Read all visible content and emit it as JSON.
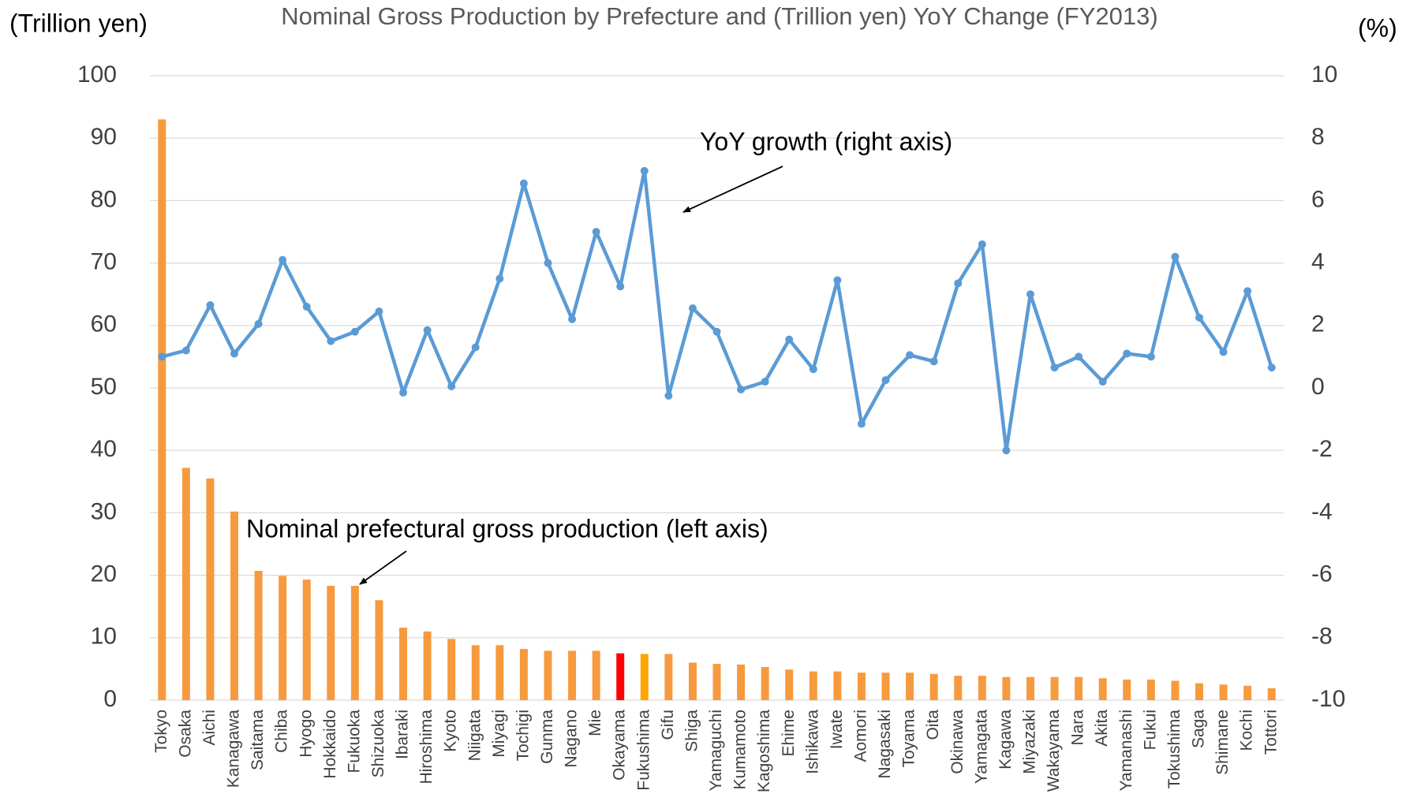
{
  "chart_data": {
    "type": "bar_line",
    "title": "Nominal Gross Production by Prefecture and (Trillion  yen) YoY Change (FY2013)",
    "y_label": "(Trillion yen)",
    "y2_label": "(%)",
    "categories": [
      "Tokyo",
      "Osaka",
      "Aichi",
      "Kanagawa",
      "Saitama",
      "Chiba",
      "Hyogo",
      "Hokkaido",
      "Fukuoka",
      "Shizuoka",
      "Ibaraki",
      "Hiroshima",
      "Kyoto",
      "Niigata",
      "Miyagi",
      "Tochigi",
      "Gunma",
      "Nagano",
      "Mie",
      "Okayama",
      "Fukushima",
      "Gifu",
      "Shiga",
      "Yamaguchi",
      "Kumamoto",
      "Kagoshima",
      "Ehime",
      "Ishikawa",
      "Iwate",
      "Aomori",
      "Nagasaki",
      "Toyama",
      "Oita",
      "Okinawa",
      "Yamagata",
      "Kagawa",
      "Miyazaki",
      "Wakayama",
      "Nara",
      "Akita",
      "Yamanashi",
      "Fukui",
      "Tokushima",
      "Saga",
      "Shimane",
      "Kochi",
      "Tottori"
    ],
    "series": [
      {
        "name": "Nominal prefectural gross production (left axis)",
        "type": "bar",
        "axis": "y",
        "color": "#f79a3e",
        "colors": [
          "#f79a3e",
          "#f79a3e",
          "#f79a3e",
          "#f79a3e",
          "#f79a3e",
          "#f79a3e",
          "#f79a3e",
          "#f79a3e",
          "#f79a3e",
          "#f79a3e",
          "#f79a3e",
          "#f79a3e",
          "#f79a3e",
          "#f79a3e",
          "#f79a3e",
          "#f79a3e",
          "#f79a3e",
          "#f79a3e",
          "#f79a3e",
          "#ff0000",
          "#ffa500",
          "#f79a3e",
          "#f79a3e",
          "#f79a3e",
          "#f79a3e",
          "#f79a3e",
          "#f79a3e",
          "#f79a3e",
          "#f79a3e",
          "#f79a3e",
          "#f79a3e",
          "#f79a3e",
          "#f79a3e",
          "#f79a3e",
          "#f79a3e",
          "#f79a3e",
          "#f79a3e",
          "#f79a3e",
          "#f79a3e",
          "#f79a3e",
          "#f79a3e",
          "#f79a3e",
          "#f79a3e",
          "#f79a3e",
          "#f79a3e",
          "#f79a3e",
          "#f79a3e"
        ],
        "values": [
          93,
          37.2,
          35.5,
          30.2,
          20.7,
          19.9,
          19.3,
          18.3,
          18.3,
          16.0,
          11.6,
          11.0,
          9.8,
          8.8,
          8.8,
          8.2,
          7.9,
          7.9,
          7.9,
          7.5,
          7.4,
          7.4,
          6.0,
          5.8,
          5.7,
          5.3,
          4.9,
          4.6,
          4.6,
          4.4,
          4.4,
          4.4,
          4.2,
          3.9,
          3.9,
          3.7,
          3.7,
          3.7,
          3.7,
          3.5,
          3.3,
          3.3,
          3.1,
          2.7,
          2.5,
          2.3,
          1.9
        ]
      },
      {
        "name": "YoY growth (right axis)",
        "type": "line",
        "axis": "y2",
        "color": "#5b9bd5",
        "values": [
          1.0,
          1.2,
          2.65,
          1.1,
          2.05,
          4.1,
          2.6,
          1.5,
          1.8,
          2.45,
          -0.15,
          1.85,
          0.05,
          1.3,
          3.5,
          6.55,
          4.0,
          2.2,
          5.0,
          3.25,
          6.95,
          -0.25,
          2.55,
          1.8,
          -0.05,
          0.2,
          1.55,
          0.6,
          3.45,
          -1.15,
          0.25,
          1.05,
          0.85,
          3.35,
          4.6,
          -2.0,
          3.0,
          0.65,
          1.0,
          0.2,
          1.1,
          1.0,
          4.2,
          2.25,
          1.15,
          3.1,
          0.65
        ]
      }
    ],
    "ylim": [
      0,
      100
    ],
    "yticks": [
      0,
      10,
      20,
      30,
      40,
      50,
      60,
      70,
      80,
      90,
      100
    ],
    "y2lim": [
      -10,
      10
    ],
    "y2ticks": [
      -10,
      -8,
      -6,
      -4,
      -2,
      0,
      2,
      4,
      6,
      8,
      10
    ],
    "grid": true
  }
}
